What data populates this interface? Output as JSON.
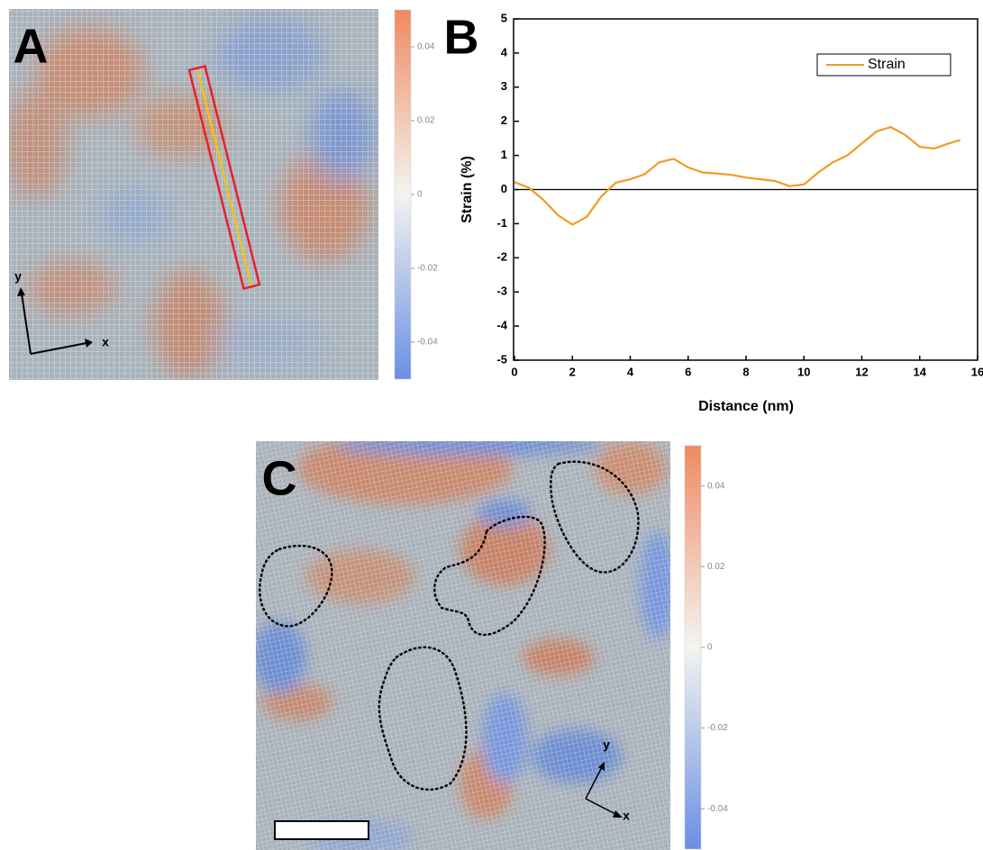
{
  "chart_data": [
    {
      "type": "colorbar",
      "panel": "A",
      "xlabel": "x",
      "ylabel": "y",
      "cmap": [
        "#ef8a62",
        "#f4f4f0",
        "#6a8fe3"
      ],
      "ylim": [
        -0.05,
        0.05
      ],
      "yticks": [
        0.04,
        0.02,
        0,
        -0.02,
        -0.04
      ]
    },
    {
      "type": "line",
      "panel": "B",
      "xlabel": "Distance (nm)",
      "ylabel": "Strain (%)",
      "x": [
        0,
        0.5,
        1,
        1.5,
        2,
        2.5,
        3,
        3.5,
        4,
        4.5,
        5,
        5.5,
        6,
        6.5,
        7,
        7.5,
        8,
        8.5,
        9,
        9.5,
        10,
        10.5,
        11,
        11.5,
        12,
        12.5,
        13,
        13.5,
        14,
        14.5,
        15,
        15.4
      ],
      "series": [
        {
          "name": "Strain",
          "color": "#f39a26",
          "values": [
            0.22,
            0.05,
            -0.3,
            -0.75,
            -1.03,
            -0.8,
            -0.2,
            0.2,
            0.3,
            0.45,
            0.8,
            0.9,
            0.65,
            0.5,
            0.47,
            0.43,
            0.35,
            0.3,
            0.25,
            0.1,
            0.15,
            0.5,
            0.8,
            1.0,
            1.35,
            1.7,
            1.83,
            1.6,
            1.25,
            1.2,
            1.35,
            1.45
          ]
        }
      ],
      "xlim": [
        0,
        16
      ],
      "xticks": [
        0,
        2,
        4,
        6,
        8,
        10,
        12,
        14,
        16
      ],
      "ylim": [
        -5,
        5
      ],
      "yticks": [
        -5,
        -4,
        -3,
        -2,
        -1,
        0,
        1,
        2,
        3,
        4,
        5
      ],
      "legend": "upper right"
    },
    {
      "type": "colorbar",
      "panel": "C",
      "xlabel": "x",
      "ylabel": "y",
      "cmap": [
        "#ef8a62",
        "#f4f4f0",
        "#6a8fe3"
      ],
      "ylim": [
        -0.05,
        0.05
      ],
      "yticks": [
        0.04,
        0.02,
        0,
        -0.02,
        -0.04
      ]
    }
  ]
}
